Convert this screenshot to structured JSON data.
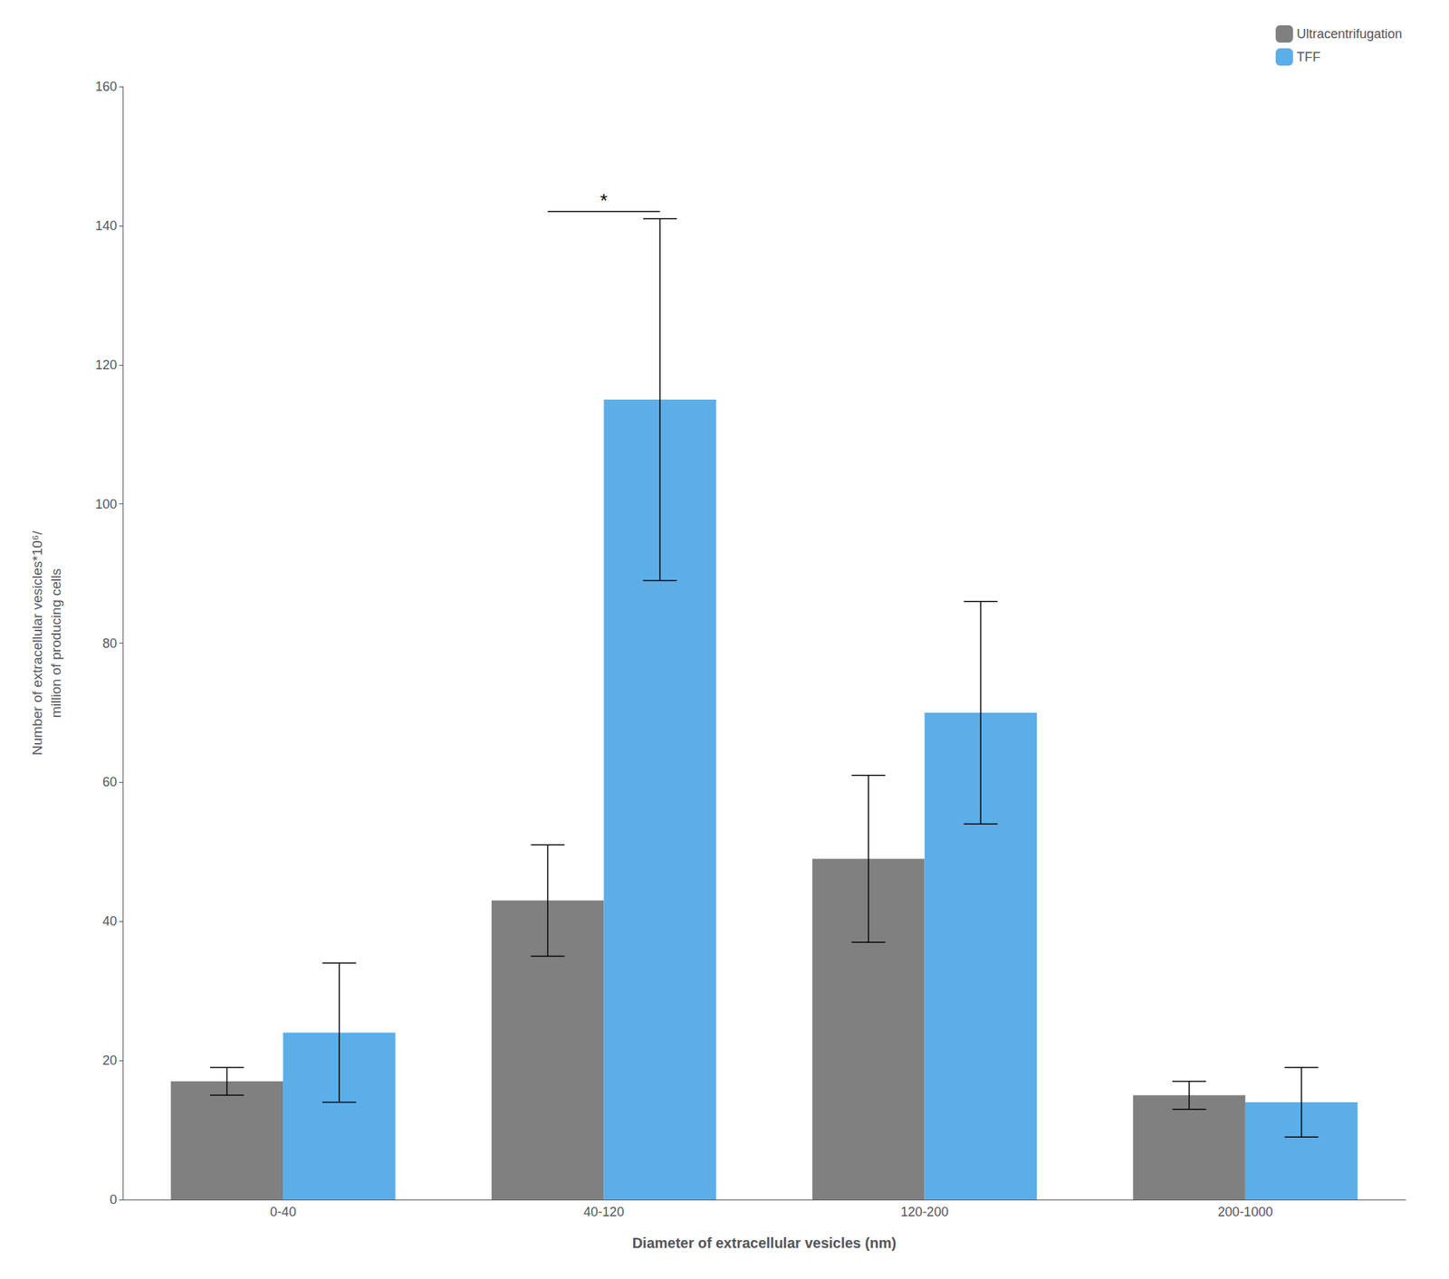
{
  "chart_data": {
    "type": "bar",
    "categories": [
      "0-40",
      "40-120",
      "120-200",
      "200-1000"
    ],
    "series": [
      {
        "name": "Ultracentrifugation",
        "color": "#808080",
        "values": [
          17,
          43,
          49,
          15
        ],
        "errors": [
          2,
          8,
          12,
          2
        ]
      },
      {
        "name": "TFF",
        "color": "#5BAEE8",
        "values": [
          24,
          115,
          70,
          14
        ],
        "errors": [
          10,
          26,
          16,
          5
        ]
      }
    ],
    "xlabel": "Diameter of extracellular vesicles (nm)",
    "ylabel": "Number of extracellular vesicles*10⁶/\nmillion of producing cells",
    "ylim": [
      0,
      160
    ],
    "yticks": [
      0,
      20,
      40,
      60,
      80,
      100,
      120,
      140,
      160
    ],
    "annotations": [
      {
        "text": "*",
        "category": "40-120"
      }
    ],
    "legend": "upper right",
    "grid": false
  }
}
